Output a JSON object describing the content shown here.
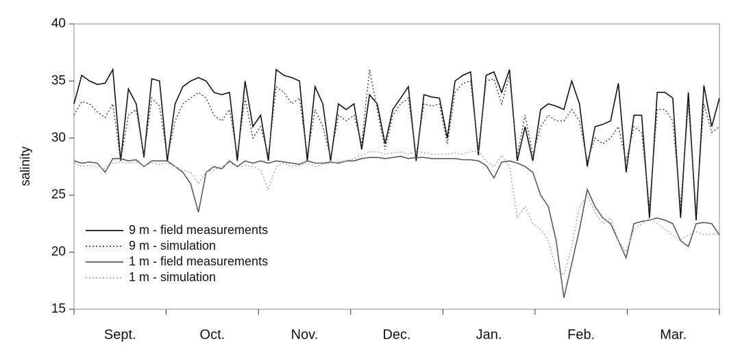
{
  "chart_data": {
    "type": "line",
    "y_label": "salinity",
    "categories": [
      "Sept.",
      "Oct.",
      "Nov.",
      "Dec.",
      "Jan.",
      "Feb.",
      "Mar."
    ],
    "ylim": [
      15,
      40
    ],
    "yticks": [
      15,
      20,
      25,
      30,
      35,
      40
    ],
    "legend": "lower left",
    "series": [
      {
        "name": "9 m - field measurements",
        "color": "#111111",
        "dash": "solid",
        "values": [
          [
            33,
            35.5,
            35,
            34.7,
            34.8,
            36,
            28,
            34.3,
            33,
            28.3,
            35.2,
            35
          ],
          [
            28,
            33,
            34.5,
            35,
            35.3,
            35,
            34,
            33.8,
            34,
            28,
            35,
            31
          ],
          [
            32,
            28,
            36,
            35.5,
            35.3,
            35,
            28,
            34.5,
            33,
            28,
            33,
            32.5
          ],
          [
            33,
            29,
            33.8,
            33,
            29.5,
            32.5,
            33.5,
            34.5,
            28,
            33.8,
            33.6,
            33.5
          ],
          [
            30,
            35,
            35.5,
            35.8,
            28.5,
            35.5,
            35.8,
            34,
            36,
            28,
            31,
            28
          ],
          [
            32.5,
            33,
            32.8,
            32.5,
            35,
            33,
            27.5,
            31,
            31.2,
            31.5,
            34.8,
            27
          ],
          [
            32,
            32,
            23,
            34,
            34,
            33.5,
            23,
            34,
            22.8,
            34.6,
            31,
            33.5
          ]
        ]
      },
      {
        "name": "9 m - simulation",
        "color": "#444444",
        "dash": "dotted",
        "values": [
          [
            32,
            33.2,
            33,
            32.3,
            31.8,
            33,
            28,
            32,
            32.5,
            28.5,
            33.5,
            32.8
          ],
          [
            28.3,
            31.5,
            33,
            33.5,
            34,
            33.5,
            32,
            31.5,
            32.5,
            28.5,
            33.5,
            30
          ],
          [
            31,
            28.5,
            34.5,
            34,
            33,
            33.5,
            28.5,
            32.5,
            31,
            28.3,
            32,
            31.5
          ],
          [
            32,
            29.5,
            36,
            32.5,
            29,
            32,
            33,
            33.5,
            28.5,
            33,
            32.8,
            33
          ],
          [
            29.5,
            34,
            34.8,
            35,
            29,
            35,
            35.2,
            33,
            35.5,
            28.5,
            32,
            28.5
          ],
          [
            31,
            32,
            31.5,
            31.5,
            32.5,
            31.5,
            28,
            30,
            29.5,
            30,
            31,
            28
          ],
          [
            31,
            30.5,
            24,
            32.5,
            32.5,
            31.5,
            24,
            33,
            23.5,
            33,
            30.5,
            31
          ]
        ]
      },
      {
        "name": "1 m - field measurements",
        "color": "#5a5a5a",
        "dash": "solid",
        "values": [
          [
            28,
            27.8,
            27.9,
            27.8,
            27,
            28.2,
            28.2,
            28,
            28.1,
            27.5,
            28,
            28
          ],
          [
            28,
            27.5,
            27,
            26,
            23.5,
            27,
            27.5,
            27.3,
            28,
            27.5,
            28,
            27.8
          ],
          [
            28,
            27.8,
            28,
            27.9,
            27.8,
            27.7,
            28,
            27.8,
            27.8,
            27.9,
            27.8,
            28
          ],
          [
            28,
            28.2,
            28.3,
            28.3,
            28.2,
            28.3,
            28.4,
            28.2,
            28.3,
            28.3,
            28.2,
            28.2
          ],
          [
            28.2,
            28.2,
            28.1,
            28.1,
            28,
            27.6,
            26.5,
            27.9,
            28,
            27.8,
            27.5,
            27
          ],
          [
            25,
            24,
            21,
            16,
            19,
            22,
            25.5,
            24,
            23,
            22.5,
            21,
            19.5
          ],
          [
            22.5,
            22.7,
            22.8,
            23,
            22.8,
            22.5,
            21,
            20.5,
            22.5,
            22.6,
            22.5,
            21.5
          ]
        ]
      },
      {
        "name": "1 m - simulation",
        "color": "#aaaaaa",
        "dash": "dotted",
        "values": [
          [
            27.8,
            27.5,
            27.6,
            27.5,
            27.3,
            27.8,
            27.9,
            27.8,
            27.9,
            27.6,
            27.8,
            27.7
          ],
          [
            27.8,
            27.5,
            27.2,
            27,
            26,
            27,
            27.2,
            27.5,
            27.8,
            27.5,
            27.6,
            27.5
          ],
          [
            27.2,
            25.5,
            27.5,
            27.8,
            27.5,
            27.6,
            27.8,
            27.5,
            27.7,
            27.8,
            27.9,
            28
          ],
          [
            28.2,
            28.5,
            28.8,
            28.8,
            28.6,
            28.7,
            28.8,
            28.6,
            28.8,
            28.7,
            28.6,
            28.6
          ],
          [
            28.6,
            28.7,
            28.6,
            28.8,
            28.9,
            28,
            27.5,
            28.5,
            27.5,
            23,
            24,
            22.5
          ],
          [
            22,
            21,
            18.5,
            18,
            20.5,
            24,
            25,
            23.5,
            22.5,
            23,
            21,
            20
          ],
          [
            22,
            22.5,
            23,
            22.5,
            22,
            21.5,
            21,
            21.5,
            21.8,
            21.5,
            21.6,
            21.5
          ]
        ]
      }
    ]
  }
}
